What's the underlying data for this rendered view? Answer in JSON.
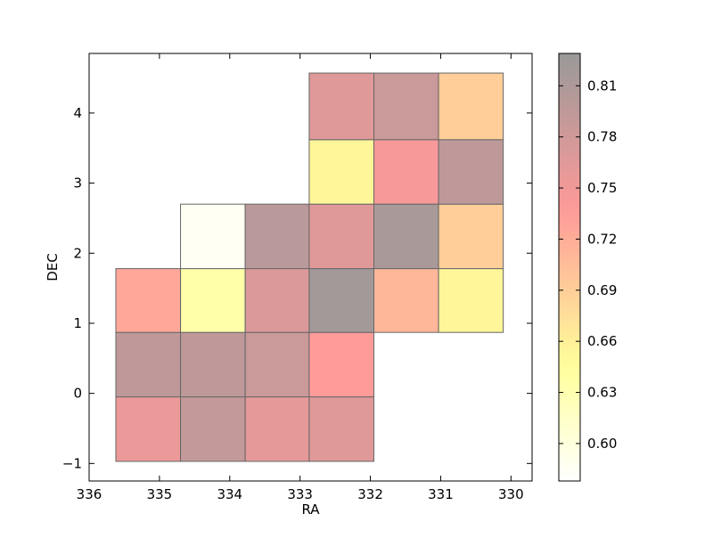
{
  "chart_data": {
    "type": "heatmap",
    "xlabel": "RA",
    "ylabel": "DEC",
    "xlim": [
      336,
      329.7
    ],
    "ylim": [
      -1.25,
      4.85
    ],
    "x_ticks": [
      336,
      335,
      334,
      333,
      332,
      331,
      330
    ],
    "x_tick_labels": [
      "336",
      "335",
      "334",
      "333",
      "332",
      "331",
      "330"
    ],
    "y_ticks": [
      -1,
      0,
      1,
      2,
      3,
      4
    ],
    "y_tick_labels": [
      "−1",
      "0",
      "1",
      "2",
      "3",
      "4"
    ],
    "colorbar": {
      "colormap": "hot_r",
      "alpha": 0.4,
      "range": [
        0.578,
        0.829
      ],
      "ticks": [
        0.6,
        0.63,
        0.66,
        0.69,
        0.72,
        0.75,
        0.78,
        0.81
      ],
      "tick_labels": [
        "0.60",
        "0.63",
        "0.66",
        "0.69",
        "0.72",
        "0.75",
        "0.78",
        "0.81"
      ]
    },
    "grid": false,
    "cells": [
      {
        "ra_min": 334.7,
        "ra_max": 335.62,
        "dec_min": -0.97,
        "dec_max": -0.05,
        "value": 0.755
      },
      {
        "ra_min": 333.78,
        "ra_max": 334.7,
        "dec_min": -0.97,
        "dec_max": -0.05,
        "value": 0.79
      },
      {
        "ra_min": 332.87,
        "ra_max": 333.78,
        "dec_min": -0.97,
        "dec_max": -0.05,
        "value": 0.76
      },
      {
        "ra_min": 331.95,
        "ra_max": 332.87,
        "dec_min": -0.97,
        "dec_max": -0.05,
        "value": 0.765
      },
      {
        "ra_min": 334.7,
        "ra_max": 335.62,
        "dec_min": -0.05,
        "dec_max": 0.87,
        "value": 0.795
      },
      {
        "ra_min": 333.78,
        "ra_max": 334.7,
        "dec_min": -0.05,
        "dec_max": 0.87,
        "value": 0.795
      },
      {
        "ra_min": 332.87,
        "ra_max": 333.78,
        "dec_min": -0.05,
        "dec_max": 0.87,
        "value": 0.785
      },
      {
        "ra_min": 331.95,
        "ra_max": 332.87,
        "dec_min": -0.05,
        "dec_max": 0.87,
        "value": 0.735
      },
      {
        "ra_min": 334.7,
        "ra_max": 335.62,
        "dec_min": 0.87,
        "dec_max": 1.78,
        "value": 0.725
      },
      {
        "ra_min": 333.78,
        "ra_max": 334.7,
        "dec_min": 0.87,
        "dec_max": 1.78,
        "value": 0.635
      },
      {
        "ra_min": 332.87,
        "ra_max": 333.78,
        "dec_min": 0.87,
        "dec_max": 1.78,
        "value": 0.77
      },
      {
        "ra_min": 331.95,
        "ra_max": 332.87,
        "dec_min": 0.87,
        "dec_max": 1.78,
        "value": 0.82
      },
      {
        "ra_min": 331.03,
        "ra_max": 331.95,
        "dec_min": 0.87,
        "dec_max": 1.78,
        "value": 0.71
      },
      {
        "ra_min": 330.11,
        "ra_max": 331.03,
        "dec_min": 0.87,
        "dec_max": 1.78,
        "value": 0.655
      },
      {
        "ra_min": 333.78,
        "ra_max": 334.7,
        "dec_min": 1.78,
        "dec_max": 2.7,
        "value": 0.585
      },
      {
        "ra_min": 332.87,
        "ra_max": 333.78,
        "dec_min": 1.78,
        "dec_max": 2.7,
        "value": 0.8
      },
      {
        "ra_min": 331.95,
        "ra_max": 332.87,
        "dec_min": 1.78,
        "dec_max": 2.7,
        "value": 0.765
      },
      {
        "ra_min": 331.03,
        "ra_max": 331.95,
        "dec_min": 1.78,
        "dec_max": 2.7,
        "value": 0.815
      },
      {
        "ra_min": 330.11,
        "ra_max": 331.03,
        "dec_min": 1.78,
        "dec_max": 2.7,
        "value": 0.69
      },
      {
        "ra_min": 331.95,
        "ra_max": 332.87,
        "dec_min": 2.7,
        "dec_max": 3.62,
        "value": 0.655
      },
      {
        "ra_min": 331.03,
        "ra_max": 331.95,
        "dec_min": 2.7,
        "dec_max": 3.62,
        "value": 0.745
      },
      {
        "ra_min": 330.11,
        "ra_max": 331.03,
        "dec_min": 2.7,
        "dec_max": 3.62,
        "value": 0.795
      },
      {
        "ra_min": 331.95,
        "ra_max": 332.87,
        "dec_min": 3.62,
        "dec_max": 4.57,
        "value": 0.765
      },
      {
        "ra_min": 331.03,
        "ra_max": 331.95,
        "dec_min": 3.62,
        "dec_max": 4.57,
        "value": 0.785
      },
      {
        "ra_min": 330.11,
        "ra_max": 331.03,
        "dec_min": 3.62,
        "dec_max": 4.57,
        "value": 0.69
      }
    ]
  }
}
